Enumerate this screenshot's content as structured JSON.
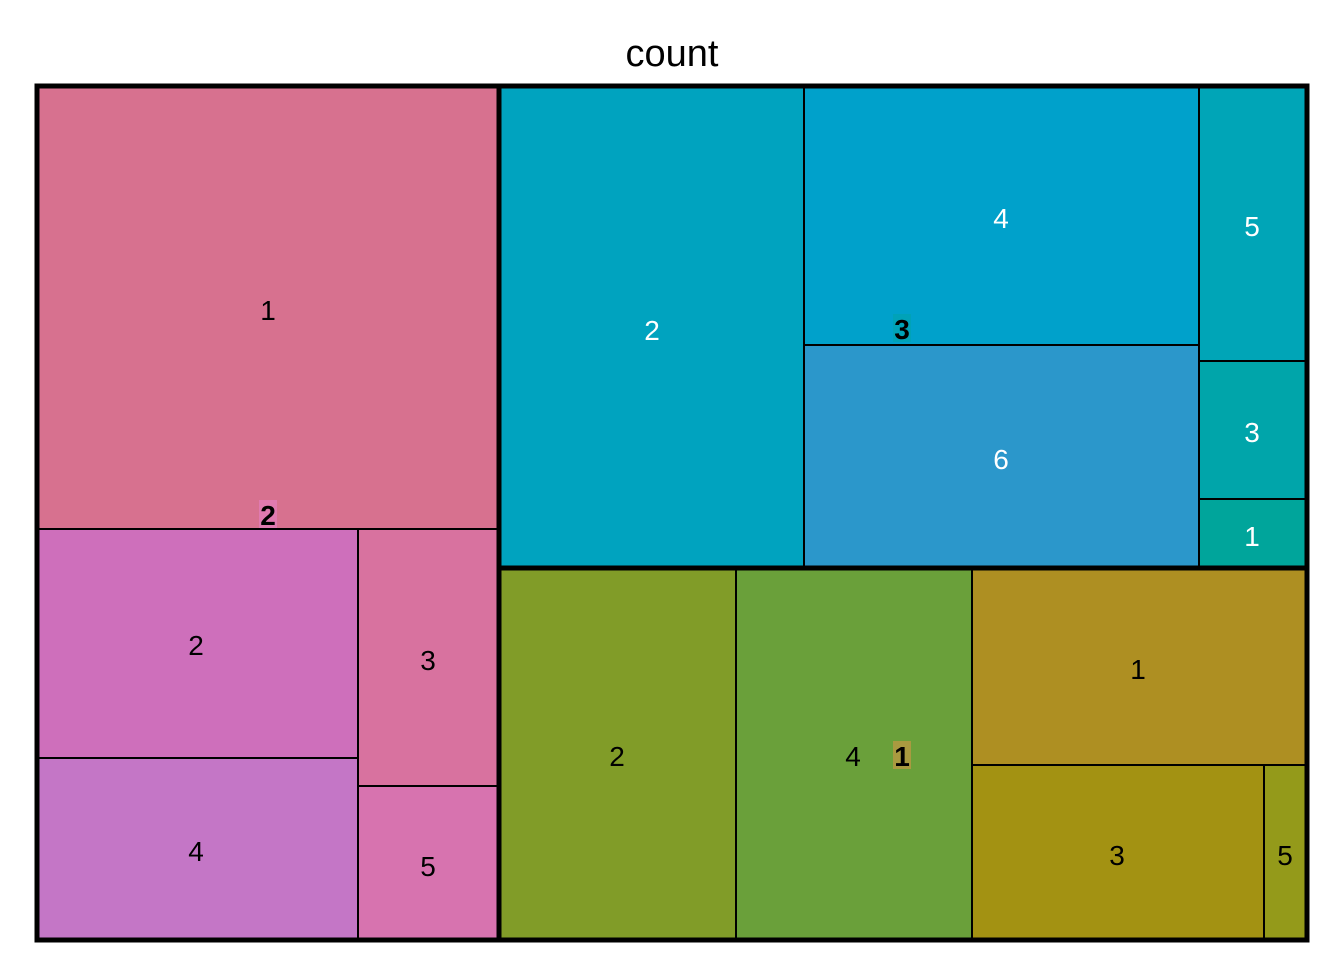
{
  "chart_data": {
    "type": "treemap",
    "title": "count",
    "groups": [
      {
        "label": "2",
        "label_bg": "#e07ab0",
        "children": [
          {
            "label": "1",
            "color": "#d7718f",
            "text_color": "#000000"
          },
          {
            "label": "2",
            "color": "#ce6fbb",
            "text_color": "#000000"
          },
          {
            "label": "4",
            "color": "#c476c6",
            "text_color": "#000000"
          },
          {
            "label": "3",
            "color": "#d8729f",
            "text_color": "#000000"
          },
          {
            "label": "5",
            "color": "#d773af",
            "text_color": "#000000"
          }
        ]
      },
      {
        "label": "3",
        "label_bg": "#00a2b8",
        "children": [
          {
            "label": "2",
            "color": "#00a3bf",
            "text_color": "#ffffff"
          },
          {
            "label": "4",
            "color": "#00a1cb",
            "text_color": "#ffffff"
          },
          {
            "label": "6",
            "color": "#2b97cb",
            "text_color": "#ffffff"
          },
          {
            "label": "5",
            "color": "#00a5b7",
            "text_color": "#ffffff"
          },
          {
            "label": "3",
            "color": "#00a5aa",
            "text_color": "#ffffff"
          },
          {
            "label": "1",
            "color": "#00a59b",
            "text_color": "#ffffff"
          }
        ]
      },
      {
        "label": "1",
        "label_bg": "#a99a40",
        "children": [
          {
            "label": "2",
            "color": "#819c28",
            "text_color": "#000000"
          },
          {
            "label": "4",
            "color": "#6aa03a",
            "text_color": "#000000"
          },
          {
            "label": "1",
            "color": "#ae8f22",
            "text_color": "#000000"
          },
          {
            "label": "3",
            "color": "#a39212",
            "text_color": "#000000"
          },
          {
            "label": "5",
            "color": "#949a1a",
            "text_color": "#000000"
          }
        ]
      }
    ]
  }
}
